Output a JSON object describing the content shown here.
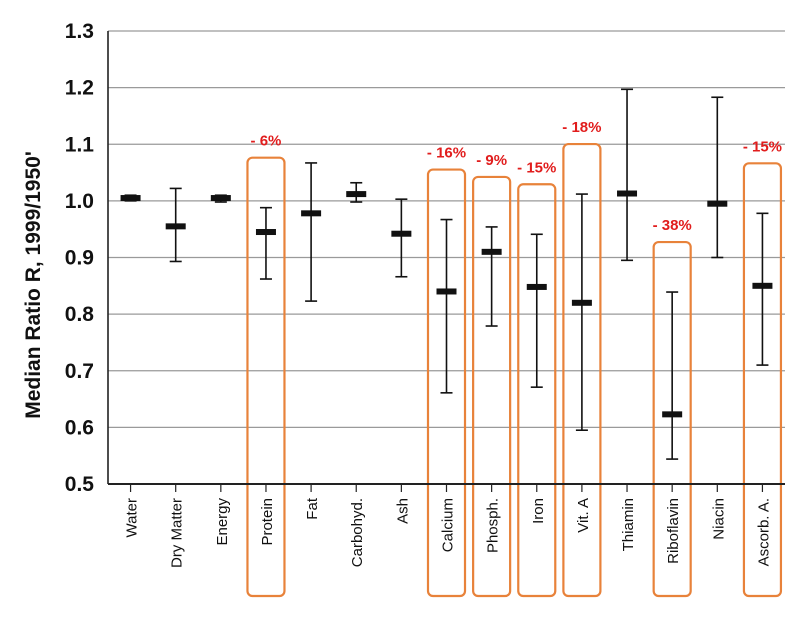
{
  "chart_data": {
    "type": "scatter",
    "ylabel": "Median Ratio R, 1999/1950'",
    "ylim": [
      0.5,
      1.3
    ],
    "yticks": [
      "0.5",
      "0.6",
      "0.7",
      "0.8",
      "0.9",
      "1.0",
      "1.1",
      "1.2",
      "1.3"
    ],
    "grid": true,
    "highlight_color": "#e8823a",
    "annotation_color": "#e11d1d",
    "categories": [
      "Water",
      "Dry Matter",
      "Energy",
      "Protein",
      "Fat",
      "Carbohyd.",
      "Ash",
      "Calcium",
      "Phosph.",
      "Iron",
      "Vit. A",
      "Thiamin",
      "Riboflavin",
      "Niacin",
      "Ascorb. A."
    ],
    "median": [
      1.005,
      0.955,
      1.005,
      0.945,
      0.978,
      1.012,
      0.942,
      0.84,
      0.91,
      0.848,
      0.82,
      1.013,
      0.623,
      0.995,
      0.85
    ],
    "low": [
      1.0,
      0.893,
      0.998,
      0.862,
      0.823,
      0.998,
      0.866,
      0.661,
      0.779,
      0.671,
      0.595,
      0.895,
      0.544,
      0.9,
      0.71
    ],
    "high": [
      1.01,
      1.022,
      1.01,
      0.988,
      1.067,
      1.032,
      1.003,
      0.967,
      0.954,
      0.941,
      1.012,
      1.197,
      0.839,
      1.183,
      0.978
    ],
    "highlighted": [
      false,
      false,
      false,
      true,
      false,
      false,
      false,
      true,
      true,
      true,
      true,
      false,
      true,
      false,
      true
    ],
    "annotations": [
      {
        "category": "Protein",
        "text": "- 6%"
      },
      {
        "category": "Calcium",
        "text": "- 16%"
      },
      {
        "category": "Phosph.",
        "text": "- 9%"
      },
      {
        "category": "Iron",
        "text": "- 15%"
      },
      {
        "category": "Vit. A",
        "text": "- 18%"
      },
      {
        "category": "Riboflavin",
        "text": "- 38%"
      },
      {
        "category": "Ascorb. A.",
        "text": "- 15%"
      }
    ]
  }
}
